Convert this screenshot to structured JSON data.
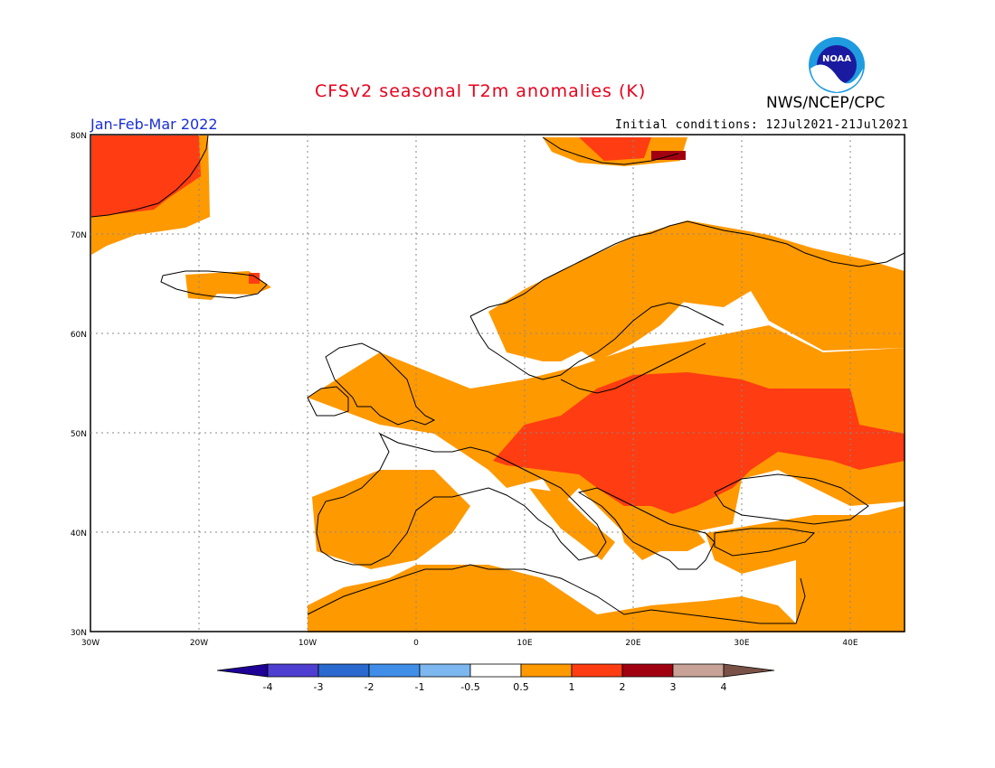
{
  "header": {
    "title": "CFSv2 seasonal T2m anomalies (K)",
    "org": "NWS/NCEP/CPC",
    "season": "Jan-Feb-Mar 2022",
    "initial_conditions": "Initial conditions: 12Jul2021-21Jul2021",
    "logo_text": "NOAA"
  },
  "axes": {
    "lat_labels": [
      "80N",
      "70N",
      "60N",
      "50N",
      "40N",
      "30N"
    ],
    "lon_labels": [
      "30W",
      "20W",
      "10W",
      "0",
      "10E",
      "20E",
      "30E",
      "40E"
    ]
  },
  "colorbar": {
    "labels": [
      "-4",
      "-3",
      "-2",
      "-1",
      "-0.5",
      "0.5",
      "1",
      "2",
      "3",
      "4"
    ],
    "colors": [
      "#1e0096",
      "#4e3fd0",
      "#2a69cf",
      "#418ee8",
      "#7db7ef",
      "#ffffff",
      "#ff9900",
      "#ff3c12",
      "#a00010",
      "#c8a296",
      "#7a5146"
    ]
  },
  "colors": {
    "anomaly_0_5_to_1": "#ff9900",
    "anomaly_1_to_2": "#ff3c12",
    "anomaly_2_to_3": "#a00010",
    "title": "#e8001b",
    "season": "#1a2fd6"
  }
}
